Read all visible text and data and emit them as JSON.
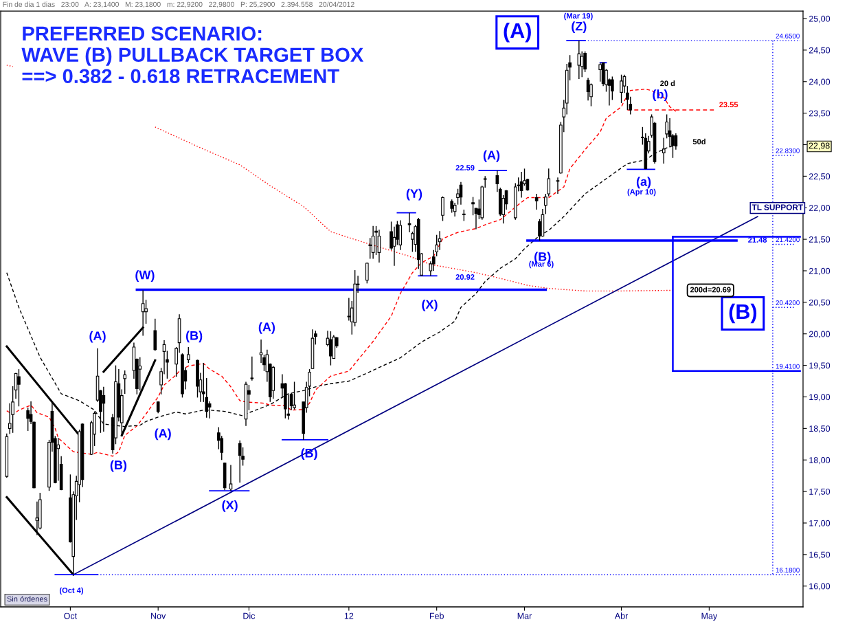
{
  "chart_data": {
    "type": "candlestick",
    "title": "PREFERRED SCENARIO:\nWAVE (B) PULLBACK TARGET BOX\n==> 0.382 - 0.618 RETRACEMENT",
    "x": [
      "2011-09-12",
      "2011-09-13",
      "2011-09-14",
      "2011-09-15",
      "2011-09-16",
      "2011-09-19",
      "2011-09-20",
      "2011-09-21",
      "2011-09-22",
      "2011-09-23",
      "2011-09-26",
      "2011-09-27",
      "2011-09-28",
      "2011-09-29",
      "2011-09-30",
      "2011-10-03",
      "2011-10-04",
      "2011-10-05",
      "2011-10-06",
      "2011-10-07",
      "2011-10-10",
      "2011-10-11",
      "2011-10-12",
      "2011-10-13",
      "2011-10-14",
      "2011-10-17",
      "2011-10-18",
      "2011-10-19",
      "2011-10-20",
      "2011-10-21",
      "2011-10-24",
      "2011-10-25",
      "2011-10-26",
      "2011-10-27",
      "2011-10-28",
      "2011-10-31",
      "2011-11-01",
      "2011-11-02",
      "2011-11-03",
      "2011-11-04",
      "2011-11-07",
      "2011-11-08",
      "2011-11-09",
      "2011-11-10",
      "2011-11-11",
      "2011-11-14",
      "2011-11-15",
      "2011-11-16",
      "2011-11-17",
      "2011-11-18",
      "2011-11-21",
      "2011-11-22",
      "2011-11-23",
      "2011-11-25",
      "2011-11-28",
      "2011-11-29",
      "2011-11-30",
      "2011-12-01",
      "2011-12-02",
      "2011-12-05",
      "2011-12-06",
      "2011-12-07",
      "2011-12-08",
      "2011-12-09",
      "2011-12-12",
      "2011-12-13",
      "2011-12-14",
      "2011-12-15",
      "2011-12-16",
      "2011-12-19",
      "2011-12-20",
      "2011-12-21",
      "2011-12-22",
      "2011-12-23",
      "2011-12-27",
      "2011-12-28",
      "2011-12-29",
      "2011-12-30",
      "2012-01-03",
      "2012-01-04",
      "2012-01-05",
      "2012-01-06",
      "2012-01-09",
      "2012-01-10",
      "2012-01-11",
      "2012-01-12",
      "2012-01-13",
      "2012-01-17",
      "2012-01-18",
      "2012-01-19",
      "2012-01-20",
      "2012-01-23",
      "2012-01-24",
      "2012-01-25",
      "2012-01-26",
      "2012-01-27",
      "2012-01-30",
      "2012-01-31",
      "2012-02-01",
      "2012-02-02",
      "2012-02-03",
      "2012-02-06",
      "2012-02-07",
      "2012-02-08",
      "2012-02-09",
      "2012-02-10",
      "2012-02-13",
      "2012-02-14",
      "2012-02-15",
      "2012-02-16",
      "2012-02-17",
      "2012-02-21",
      "2012-02-22",
      "2012-02-23",
      "2012-02-24",
      "2012-02-27",
      "2012-02-28",
      "2012-02-29",
      "2012-03-01",
      "2012-03-02",
      "2012-03-05",
      "2012-03-06",
      "2012-03-07",
      "2012-03-08",
      "2012-03-09",
      "2012-03-12",
      "2012-03-13",
      "2012-03-14",
      "2012-03-15",
      "2012-03-16",
      "2012-03-19",
      "2012-03-20",
      "2012-03-21",
      "2012-03-22",
      "2012-03-23",
      "2012-03-26",
      "2012-03-27",
      "2012-03-28",
      "2012-03-29",
      "2012-03-30",
      "2012-04-02",
      "2012-04-03",
      "2012-04-04",
      "2012-04-05",
      "2012-04-09",
      "2012-04-10",
      "2012-04-11",
      "2012-04-12",
      "2012-04-13",
      "2012-04-16",
      "2012-04-17",
      "2012-04-18",
      "2012-04-19",
      "2012-04-20"
    ],
    "ohlc": [
      [
        17.74,
        18.42,
        17.72,
        18.37
      ],
      [
        18.5,
        18.9,
        18.41,
        18.58
      ],
      [
        18.72,
        19.17,
        18.43,
        18.92
      ],
      [
        19.11,
        19.38,
        18.97,
        19.37
      ],
      [
        19.32,
        19.44,
        18.85,
        19.2
      ],
      [
        18.78,
        18.83,
        18.46,
        18.66
      ],
      [
        18.72,
        18.93,
        18.57,
        18.61
      ],
      [
        18.6,
        18.61,
        17.55,
        17.56
      ],
      [
        17.04,
        17.34,
        16.81,
        17.08
      ],
      [
        16.92,
        17.48,
        16.9,
        17.37
      ],
      [
        17.57,
        18.32,
        17.51,
        18.28
      ],
      [
        18.77,
        18.92,
        18.13,
        18.28
      ],
      [
        18.34,
        18.38,
        17.63,
        17.64
      ],
      [
        18.18,
        18.35,
        17.67,
        18.24
      ],
      [
        17.93,
        18.06,
        17.52,
        17.53
      ],
      [
        17.4,
        17.77,
        16.69,
        16.7
      ],
      [
        16.47,
        17.5,
        16.18,
        17.45
      ],
      [
        17.43,
        17.75,
        17.05,
        17.66
      ],
      [
        17.61,
        18.48,
        17.33,
        18.45
      ],
      [
        18.57,
        18.58,
        17.57,
        17.69
      ],
      [
        18.09,
        18.62,
        18.08,
        18.59
      ],
      [
        18.41,
        18.77,
        18.22,
        18.74
      ],
      [
        18.95,
        19.77,
        18.92,
        19.33
      ],
      [
        19.1,
        19.11,
        18.43,
        18.77
      ],
      [
        19.02,
        19.16,
        18.45,
        18.9
      ],
      [
        18.67,
        18.73,
        18.1,
        18.16
      ],
      [
        18.35,
        19.5,
        18.25,
        19.24
      ],
      [
        19.21,
        19.44,
        18.61,
        18.68
      ],
      [
        18.59,
        19.12,
        18.39,
        19.02
      ],
      [
        19.29,
        19.42,
        19.05,
        19.35
      ],
      [
        19.42,
        19.86,
        19.29,
        19.79
      ],
      [
        19.6,
        19.61,
        19.04,
        19.13
      ],
      [
        19.44,
        19.63,
        19.1,
        19.49
      ],
      [
        20.35,
        20.69,
        19.97,
        20.48
      ],
      [
        20.35,
        20.54,
        20.16,
        20.4
      ],
      [
        20.05,
        20.24,
        19.73,
        19.75
      ],
      [
        18.92,
        18.93,
        18.74,
        18.77
      ],
      [
        19.19,
        19.46,
        19.04,
        19.4
      ],
      [
        19.72,
        19.9,
        19.36,
        19.83
      ],
      [
        19.59,
        19.73,
        19.29,
        19.55
      ],
      [
        19.52,
        19.79,
        19.32,
        19.77
      ],
      [
        19.86,
        20.31,
        19.7,
        20.24
      ],
      [
        19.67,
        19.69,
        18.99,
        19.05
      ],
      [
        19.42,
        19.47,
        19.12,
        19.25
      ],
      [
        19.59,
        19.79,
        19.54,
        19.67
      ],
      [
        19.58,
        19.59,
        18.99,
        19.17
      ],
      [
        19.08,
        19.38,
        18.92,
        19.27
      ],
      [
        19.08,
        19.54,
        18.92,
        19.05
      ],
      [
        18.99,
        19.3,
        18.67,
        18.77
      ],
      [
        18.89,
        18.93,
        18.66,
        18.84
      ],
      [
        18.43,
        18.52,
        18.17,
        18.31
      ],
      [
        18.34,
        18.38,
        18.0,
        18.12
      ],
      [
        17.95,
        17.96,
        17.52,
        17.56
      ],
      [
        17.54,
        17.92,
        17.51,
        17.62
      ],
      [
        18.26,
        18.31,
        17.64,
        18.07
      ],
      [
        18.06,
        18.2,
        17.91,
        18.01
      ],
      [
        18.65,
        19.24,
        18.54,
        19.2
      ],
      [
        19.1,
        19.19,
        18.79,
        19.04
      ],
      [
        19.29,
        19.64,
        19.26,
        19.3
      ],
      [
        19.67,
        19.91,
        19.54,
        19.7
      ],
      [
        19.62,
        19.67,
        19.41,
        19.51
      ],
      [
        19.4,
        19.75,
        19.24,
        19.67
      ],
      [
        19.52,
        19.53,
        18.92,
        19.0
      ],
      [
        19.1,
        19.49,
        18.97,
        19.47
      ],
      [
        19.21,
        19.36,
        18.99,
        19.14
      ],
      [
        19.21,
        19.22,
        18.66,
        18.81
      ],
      [
        18.73,
        19.04,
        18.64,
        18.71
      ],
      [
        19.04,
        19.06,
        18.79,
        18.86
      ],
      [
        18.83,
        19.24,
        18.8,
        18.87
      ],
      [
        18.92,
        18.92,
        18.32,
        18.42
      ],
      [
        18.83,
        19.24,
        18.75,
        19.15
      ],
      [
        19.17,
        19.44,
        19.01,
        19.39
      ],
      [
        19.45,
        20.07,
        19.44,
        19.93
      ],
      [
        20.0,
        20.05,
        19.83,
        19.96
      ],
      [
        19.83,
        20.05,
        19.8,
        19.93
      ],
      [
        19.91,
        20.04,
        19.5,
        19.65
      ],
      [
        19.61,
        19.98,
        19.61,
        19.95
      ],
      [
        19.94,
        19.95,
        19.78,
        19.81
      ],
      [
        20.27,
        20.57,
        20.21,
        20.28
      ],
      [
        20.19,
        20.52,
        19.99,
        20.41
      ],
      [
        20.18,
        21.01,
        20.12,
        20.79
      ],
      [
        20.78,
        20.92,
        20.65,
        20.79
      ],
      [
        20.85,
        21.13,
        20.8,
        21.12
      ],
      [
        21.4,
        21.52,
        21.19,
        21.41
      ],
      [
        21.29,
        21.71,
        21.19,
        21.55
      ],
      [
        21.63,
        21.71,
        21.25,
        21.61
      ],
      [
        21.29,
        21.65,
        21.13,
        21.55
      ],
      [
        21.62,
        21.78,
        21.33,
        21.36
      ],
      [
        21.39,
        21.7,
        21.08,
        21.53
      ],
      [
        21.73,
        21.79,
        21.41,
        21.5
      ],
      [
        21.41,
        21.8,
        21.33,
        21.72
      ],
      [
        21.75,
        21.92,
        21.61,
        21.73
      ],
      [
        21.5,
        21.62,
        21.3,
        21.59
      ],
      [
        21.42,
        21.73,
        21.3,
        21.7
      ],
      [
        21.81,
        21.84,
        21.03,
        21.18
      ],
      [
        20.93,
        21.28,
        20.93,
        21.27
      ],
      [
        21.0,
        21.15,
        20.92,
        21.11
      ],
      [
        21.22,
        21.33,
        21.0,
        21.11
      ],
      [
        21.3,
        21.57,
        21.23,
        21.41
      ],
      [
        21.46,
        21.63,
        21.33,
        21.51
      ],
      [
        21.88,
        22.18,
        21.79,
        22.16
      ],
      [
        22.1,
        22.13,
        21.92,
        21.99
      ],
      [
        21.94,
        22.08,
        21.86,
        22.04
      ],
      [
        22.16,
        22.3,
        22.05,
        22.22
      ],
      [
        22.36,
        22.41,
        22.05,
        22.17
      ],
      [
        21.9,
        21.97,
        21.79,
        21.89
      ],
      [
        22.08,
        22.17,
        21.88,
        22.06
      ],
      [
        21.99,
        21.99,
        21.66,
        21.91
      ],
      [
        21.98,
        22.13,
        21.82,
        21.89
      ],
      [
        21.84,
        22.35,
        21.81,
        22.33
      ],
      [
        22.45,
        22.5,
        22.32,
        22.46
      ],
      [
        22.51,
        22.59,
        22.25,
        22.38
      ],
      [
        22.29,
        22.32,
        21.87,
        21.9
      ],
      [
        21.89,
        22.2,
        21.75,
        22.15
      ],
      [
        22.27,
        22.28,
        21.97,
        22.06
      ],
      [
        21.84,
        22.39,
        21.81,
        22.33
      ],
      [
        22.35,
        22.48,
        22.26,
        22.36
      ],
      [
        22.41,
        22.57,
        22.16,
        22.27
      ],
      [
        22.38,
        22.62,
        22.35,
        22.43
      ],
      [
        22.45,
        22.46,
        22.27,
        22.28
      ],
      [
        22.16,
        22.22,
        21.97,
        22.11
      ],
      [
        21.78,
        21.82,
        21.48,
        21.55
      ],
      [
        21.55,
        21.98,
        21.54,
        21.89
      ],
      [
        22.04,
        22.22,
        21.9,
        22.17
      ],
      [
        22.22,
        22.62,
        22.18,
        22.46
      ],
      [
        22.42,
        22.48,
        22.22,
        22.43
      ],
      [
        22.55,
        23.36,
        22.54,
        23.31
      ],
      [
        23.44,
        23.71,
        23.2,
        23.58
      ],
      [
        23.66,
        24.28,
        23.48,
        24.18
      ],
      [
        24.3,
        24.42,
        24.02,
        24.23
      ],
      [
        24.26,
        24.65,
        24.04,
        24.44
      ],
      [
        24.24,
        24.48,
        24.07,
        24.4
      ],
      [
        24.45,
        24.48,
        24.15,
        24.2
      ],
      [
        24.02,
        24.06,
        23.7,
        23.84
      ],
      [
        23.76,
        23.97,
        23.61,
        23.95
      ],
      [
        24.19,
        24.3,
        24.0,
        24.27
      ],
      [
        24.3,
        24.3,
        23.93,
        23.97
      ],
      [
        23.95,
        24.2,
        23.84,
        24.18
      ],
      [
        24.03,
        24.05,
        23.62,
        23.94
      ],
      [
        24.03,
        24.08,
        23.71,
        23.85
      ],
      [
        23.83,
        24.11,
        23.66,
        24.01
      ],
      [
        23.93,
        24.11,
        23.82,
        24.08
      ],
      [
        23.82,
        23.93,
        23.55,
        23.72
      ],
      [
        23.64,
        23.76,
        23.48,
        23.55
      ],
      [
        23.12,
        23.28,
        23.0,
        23.11
      ],
      [
        23.1,
        23.18,
        22.61,
        22.62
      ],
      [
        22.9,
        23.14,
        22.86,
        23.05
      ],
      [
        23.15,
        23.48,
        23.11,
        23.44
      ],
      [
        23.34,
        23.36,
        22.7,
        22.73
      ],
      [
        22.87,
        23.11,
        22.7,
        22.93
      ],
      [
        23.17,
        23.48,
        23.1,
        23.36
      ],
      [
        23.22,
        23.42,
        22.96,
        23.13
      ],
      [
        23.14,
        23.17,
        22.79,
        22.99
      ],
      [
        23.14,
        23.18,
        22.92,
        22.98
      ]
    ],
    "series": [
      {
        "type": "line",
        "color": "#ff0000",
        "line_style": "dashed",
        "x": [
          "2011-09-12",
          "2011-09-14",
          "2011-09-16",
          "2011-09-20",
          "2011-09-22",
          "2011-09-26",
          "2011-09-28",
          "2011-09-29",
          "2011-10-04",
          "2011-10-10",
          "2011-10-12",
          "2011-10-17",
          "2011-10-19",
          "2011-10-21",
          "2011-10-25",
          "2011-10-28",
          "2011-11-01",
          "2011-11-03",
          "2011-11-07",
          "2011-11-08",
          "2011-11-11",
          "2011-11-16",
          "2011-11-18",
          "2011-11-22",
          "2011-11-25",
          "2011-11-28",
          "2011-11-30",
          "2011-12-06",
          "2011-12-08",
          "2011-12-13",
          "2011-12-15",
          "2011-12-19",
          "2011-12-21",
          "2011-12-23",
          "2011-12-28",
          "2012-01-03",
          "2012-01-11",
          "2012-01-17",
          "2012-01-20",
          "2012-01-24",
          "2012-01-27",
          "2012-01-31",
          "2012-02-03",
          "2012-02-08",
          "2012-02-14",
          "2012-02-17",
          "2012-02-22",
          "2012-02-28",
          "2012-03-02",
          "2012-03-09",
          "2012-03-14",
          "2012-03-16",
          "2012-03-21",
          "2012-03-26",
          "2012-03-28",
          "2012-04-02",
          "2012-04-04",
          "2012-04-05",
          "2012-04-10",
          "2012-04-12",
          "2012-04-16",
          "2012-04-18",
          "2012-04-20"
        ],
        "values": [
          18.78,
          18.72,
          18.79,
          18.87,
          18.75,
          18.68,
          18.5,
          18.35,
          18.13,
          18.09,
          18.12,
          18.06,
          18.13,
          18.39,
          18.54,
          18.73,
          19.0,
          19.19,
          19.35,
          19.41,
          19.49,
          19.53,
          19.44,
          19.33,
          19.16,
          18.94,
          18.92,
          18.9,
          18.87,
          18.86,
          18.79,
          18.8,
          18.9,
          19.11,
          19.33,
          19.41,
          19.88,
          20.28,
          20.64,
          20.97,
          21.13,
          21.23,
          21.51,
          21.61,
          21.67,
          21.73,
          21.81,
          22.05,
          22.16,
          22.16,
          22.33,
          22.62,
          22.92,
          23.2,
          23.42,
          23.6,
          23.79,
          23.86,
          23.88,
          23.86,
          23.75,
          23.6,
          23.53
        ]
      },
      {
        "type": "line",
        "color": "#000000",
        "line_style": "dashed",
        "x": [
          "2011-09-12",
          "2011-09-16",
          "2011-09-23",
          "2011-09-30",
          "2011-10-06",
          "2011-10-11",
          "2011-10-14",
          "2011-10-21",
          "2011-10-26",
          "2011-10-28",
          "2011-11-01",
          "2011-11-07",
          "2011-11-10",
          "2011-11-16",
          "2011-11-18",
          "2011-11-23",
          "2011-11-29",
          "2011-12-01",
          "2011-12-06",
          "2011-12-08",
          "2011-12-14",
          "2011-12-19",
          "2011-12-23",
          "2011-12-28",
          "2012-01-03",
          "2012-01-10",
          "2012-01-20",
          "2012-01-27",
          "2012-02-02",
          "2012-02-07",
          "2012-02-09",
          "2012-02-14",
          "2012-02-17",
          "2012-02-22",
          "2012-02-27",
          "2012-03-01",
          "2012-03-06",
          "2012-03-09",
          "2012-03-14",
          "2012-03-21",
          "2012-03-28",
          "2012-04-04",
          "2012-04-10",
          "2012-04-13",
          "2012-04-17",
          "2012-04-19"
        ],
        "values": [
          20.97,
          20.42,
          19.63,
          19.05,
          18.94,
          18.79,
          18.57,
          18.53,
          18.55,
          18.61,
          18.68,
          18.76,
          18.73,
          18.79,
          18.79,
          18.77,
          18.7,
          18.75,
          18.84,
          18.88,
          19.05,
          19.1,
          19.16,
          19.21,
          19.25,
          19.4,
          19.62,
          19.87,
          20.03,
          20.2,
          20.42,
          20.64,
          20.83,
          21.04,
          21.19,
          21.35,
          21.56,
          21.64,
          21.86,
          22.22,
          22.46,
          22.7,
          22.76,
          22.86,
          22.95,
          22.98
        ]
      },
      {
        "type": "line",
        "color": "#ff0000",
        "line_style": "dotted",
        "x": [
          "2011-09-12",
          "2011-09-14",
          "2011-09-15",
          "2011-10-31",
          "2011-11-15",
          "2011-11-28",
          "2011-12-08",
          "2011-12-19",
          "2011-12-28",
          "2012-01-06",
          "2012-01-23",
          "2012-01-30",
          "2012-02-06",
          "2012-02-14",
          "2012-02-22",
          "2012-03-02",
          "2012-03-09",
          "2012-03-21",
          "2012-04-02",
          "2012-04-19"
        ],
        "values": [
          24.26,
          24.24,
          null,
          23.28,
          22.95,
          22.68,
          22.35,
          22.02,
          21.62,
          21.48,
          21.23,
          21.1,
          21.04,
          20.97,
          20.88,
          20.77,
          20.72,
          20.68,
          20.68,
          20.69
        ]
      },
      {
        "type": "line",
        "color": "#000000",
        "line_style": "solid",
        "x": [
          "2011-09-12",
          "2011-10-06"
        ],
        "values": [
          19.8,
          18.39
        ]
      },
      {
        "type": "line",
        "color": "#000000",
        "line_style": "solid",
        "x": [
          "2011-09-12",
          "2011-10-04"
        ],
        "values": [
          17.41,
          16.18
        ]
      },
      {
        "type": "line",
        "color": "#000000",
        "line_style": "solid",
        "x": [
          "2011-10-14",
          "2011-10-27"
        ],
        "values": [
          19.4,
          20.1
        ]
      },
      {
        "type": "line",
        "color": "#000000",
        "line_style": "solid",
        "x": [
          "2011-10-20",
          "2011-10-31"
        ],
        "values": [
          18.39,
          19.58
        ]
      },
      {
        "type": "line",
        "color": "#000080",
        "line_style": "solid",
        "x": [
          "2011-10-04",
          "2012-05-17"
        ],
        "values": [
          16.18,
          21.86
        ]
      },
      {
        "type": "line",
        "color": "#0000ff",
        "line_style": "solid",
        "x": [
          "2011-10-25",
          "2012-03-08"
        ],
        "values": [
          20.7,
          20.7
        ]
      },
      {
        "type": "line",
        "color": "#0000ff",
        "line_style": "solid",
        "x": [
          "2012-03-02",
          "2012-05-10"
        ],
        "values": [
          21.48,
          21.48
        ]
      },
      {
        "type": "line",
        "color": "#ff0000",
        "line_style": "dashed",
        "x": [
          "2012-04-04",
          "2012-05-03"
        ],
        "values": [
          23.55,
          23.55
        ]
      },
      {
        "type": "line",
        "color": "#0000ff",
        "line_style": "solid",
        "x": [
          "2011-09-28",
          "2011-10-12"
        ],
        "values": [
          16.18,
          16.18
        ]
      },
      {
        "type": "line",
        "color": "#0000ff",
        "line_style": "solid",
        "x": [
          "2011-11-18",
          "2011-12-01"
        ],
        "values": [
          17.51,
          17.51
        ]
      },
      {
        "type": "line",
        "color": "#0000ff",
        "line_style": "solid",
        "x": [
          "2011-12-12",
          "2011-12-27"
        ],
        "values": [
          18.32,
          18.32
        ]
      },
      {
        "type": "line",
        "color": "#0000ff",
        "line_style": "solid",
        "x": [
          "2012-01-26",
          "2012-02-01"
        ],
        "values": [
          20.92,
          20.92
        ]
      },
      {
        "type": "line",
        "color": "#0000ff",
        "line_style": "solid",
        "x": [
          "2012-01-19",
          "2012-01-25"
        ],
        "values": [
          21.92,
          21.92
        ]
      },
      {
        "type": "line",
        "color": "#0000ff",
        "line_style": "solid",
        "x": [
          "2012-02-15",
          "2012-02-24"
        ],
        "values": [
          22.59,
          22.59
        ]
      },
      {
        "type": "line",
        "color": "#0000ff",
        "line_style": "solid",
        "x": [
          "2012-03-15",
          "2012-03-21"
        ],
        "values": [
          24.65,
          24.65
        ]
      },
      {
        "type": "line",
        "color": "#0000ff",
        "line_style": "solid",
        "x": [
          "2012-04-04",
          "2012-04-13"
        ],
        "values": [
          22.61,
          22.61
        ]
      },
      {
        "type": "line",
        "color": "#0000ff",
        "line_style": "solid",
        "x": [
          "2012-03-26",
          "2012-03-28"
        ],
        "values": [
          24.3,
          24.3
        ]
      },
      {
        "type": "line",
        "color": "#0000ff",
        "line_style": "dotted",
        "x": [
          "2012-03-21",
          "2012-05-31"
        ],
        "values": [
          24.65,
          24.65
        ]
      },
      {
        "type": "line",
        "color": "#0000ff",
        "line_style": "dotted",
        "x": [
          "2011-10-12",
          "2012-05-31"
        ],
        "values": [
          16.18,
          16.18
        ]
      },
      {
        "type": "line",
        "color": "#0000ff",
        "line_style": "dotted",
        "x": [
          "2012-05-22",
          "2012-05-22"
        ],
        "values": [
          24.65,
          16.18
        ]
      },
      {
        "type": "line",
        "color": "#0000ff",
        "line_style": "dotted",
        "x": [
          "2012-05-22",
          "2012-05-29"
        ],
        "values": [
          22.83,
          22.83
        ]
      },
      {
        "type": "line",
        "color": "#0000ff",
        "line_style": "dotted",
        "x": [
          "2012-05-22",
          "2012-05-29"
        ],
        "values": [
          21.42,
          21.42
        ]
      },
      {
        "type": "line",
        "color": "#0000ff",
        "line_style": "dotted",
        "x": [
          "2012-05-22",
          "2012-05-29"
        ],
        "values": [
          20.42,
          20.42
        ]
      },
      {
        "type": "line",
        "color": "#0000ff",
        "line_style": "solid",
        "x": [
          "2012-04-19",
          "2012-05-31"
        ],
        "values": [
          21.54,
          21.54
        ]
      },
      {
        "type": "line",
        "color": "#0000ff",
        "line_style": "solid",
        "x": [
          "2012-04-19",
          "2012-05-31"
        ],
        "values": [
          19.41,
          19.41
        ]
      },
      {
        "type": "line",
        "color": "#0000ff",
        "line_style": "solid",
        "x": [
          "2012-04-19",
          "2012-04-19"
        ],
        "values": [
          21.54,
          19.41
        ]
      }
    ],
    "xlim": [
      "2011-09-10",
      "2012-06-01"
    ],
    "xticks": [
      {
        "value": "2011-10-03",
        "label": "Oct"
      },
      {
        "value": "2011-11-01",
        "label": "Nov"
      },
      {
        "value": "2011-12-01",
        "label": "Dic"
      },
      {
        "value": "2012-01-03",
        "label": "12"
      },
      {
        "value": "2012-02-01",
        "label": "Feb"
      },
      {
        "value": "2012-03-01",
        "label": "Mar"
      },
      {
        "value": "2012-04-02",
        "label": "Abr"
      },
      {
        "value": "2012-05-01",
        "label": "May"
      }
    ],
    "ylim": [
      15.67,
      25.12
    ],
    "yticks": [
      {
        "value": 16,
        "label": "16,00"
      },
      {
        "value": 16.5,
        "label": "16,50"
      },
      {
        "value": 17,
        "label": "17,00"
      },
      {
        "value": 17.5,
        "label": "17,50"
      },
      {
        "value": 18,
        "label": "18,00"
      },
      {
        "value": 18.5,
        "label": "18,50"
      },
      {
        "value": 19,
        "label": "19,00"
      },
      {
        "value": 19.5,
        "label": "19,50"
      },
      {
        "value": 20,
        "label": "20,00"
      },
      {
        "value": 20.5,
        "label": "20,50"
      },
      {
        "value": 21,
        "label": "21,00"
      },
      {
        "value": 21.5,
        "label": "21,50"
      },
      {
        "value": 22,
        "label": "22,00"
      },
      {
        "value": 22.5,
        "label": "22,50"
      },
      {
        "value": 23,
        "label": null
      },
      {
        "value": 23.5,
        "label": "23,50"
      },
      {
        "value": 24,
        "label": "24,00"
      },
      {
        "value": 24.5,
        "label": "24,50"
      },
      {
        "value": 25,
        "label": "25,00"
      }
    ],
    "grid": false,
    "annotations": [
      "Fin de dia 1 dias   23:00   A: 23,1400   M: 23,1800   m: 22,9200   22,9800   P: 25,2900   2.394.558   20/04/2012",
      "Sin órdenes",
      "(A)",
      "(B)",
      "(Mar 19)",
      {
        "text": "(Z)",
        "x": "2012-03-19",
        "y": 24.65
      },
      {
        "text": "(B)",
        "x": "2012-03-06",
        "y": 21.48
      },
      "(Mar 6)",
      {
        "text": "(A)",
        "x": "2012-02-21",
        "y": 22.59
      },
      "22.59",
      {
        "text": "(Y)",
        "x": "2012-01-23",
        "y": 21.92
      },
      {
        "text": "(X)",
        "x": "2012-01-30",
        "y": 20.92
      },
      "20.92",
      {
        "text": "(W)",
        "x": "2011-10-27",
        "y": 20.69
      },
      {
        "text": "(A)",
        "x": "2011-10-12",
        "y": 19.77
      },
      {
        "text": "(B)",
        "x": "2011-10-17",
        "y": 18.1
      },
      {
        "text": "(B)",
        "x": "2011-11-11",
        "y": 19.79
      },
      {
        "text": "(A)",
        "x": "2011-11-01",
        "y": 18.74
      },
      {
        "text": "(X)",
        "x": "2011-11-25",
        "y": 17.51
      },
      {
        "text": "(A)",
        "x": "2011-12-05",
        "y": 19.91
      },
      {
        "text": "(B)",
        "x": "2011-12-19",
        "y": 18.32
      },
      {
        "text": "(Oct 4)",
        "x": "2011-10-04",
        "y": 16.18
      },
      {
        "text": "(a)",
        "x": "2012-04-10",
        "y": 22.61
      },
      "(Apr 10)",
      {
        "text": "(b)",
        "x": "2012-04-17",
        "y": 23.48
      },
      {
        "text": "20 d",
        "x": "2012-04-16",
        "y": 23.75
      },
      "50d",
      {
        "text": "23.55",
        "x": "2012-05-03",
        "y": 23.55
      },
      {
        "text": "21.48",
        "x": "2012-05-10",
        "y": 21.48
      },
      {
        "text": "200d=20.69",
        "x": "2012-04-19",
        "y": 20.69
      },
      {
        "text": "TL SUPPORT",
        "x": "2012-05-17",
        "y": 21.86
      },
      {
        "text": "24.6500",
        "x": "2012-05-22",
        "y": 24.65
      },
      {
        "text": "22.8300",
        "x": "2012-05-22",
        "y": 22.83
      },
      {
        "text": "21.4200",
        "x": "2012-05-22",
        "y": 21.42
      },
      {
        "text": "20.4200",
        "x": "2012-05-22",
        "y": 20.42
      },
      {
        "text": "19.4100",
        "x": "2012-05-22",
        "y": 19.41
      },
      {
        "text": "16.1800",
        "x": "2012-05-22",
        "y": 16.18
      },
      "22,98"
    ]
  }
}
